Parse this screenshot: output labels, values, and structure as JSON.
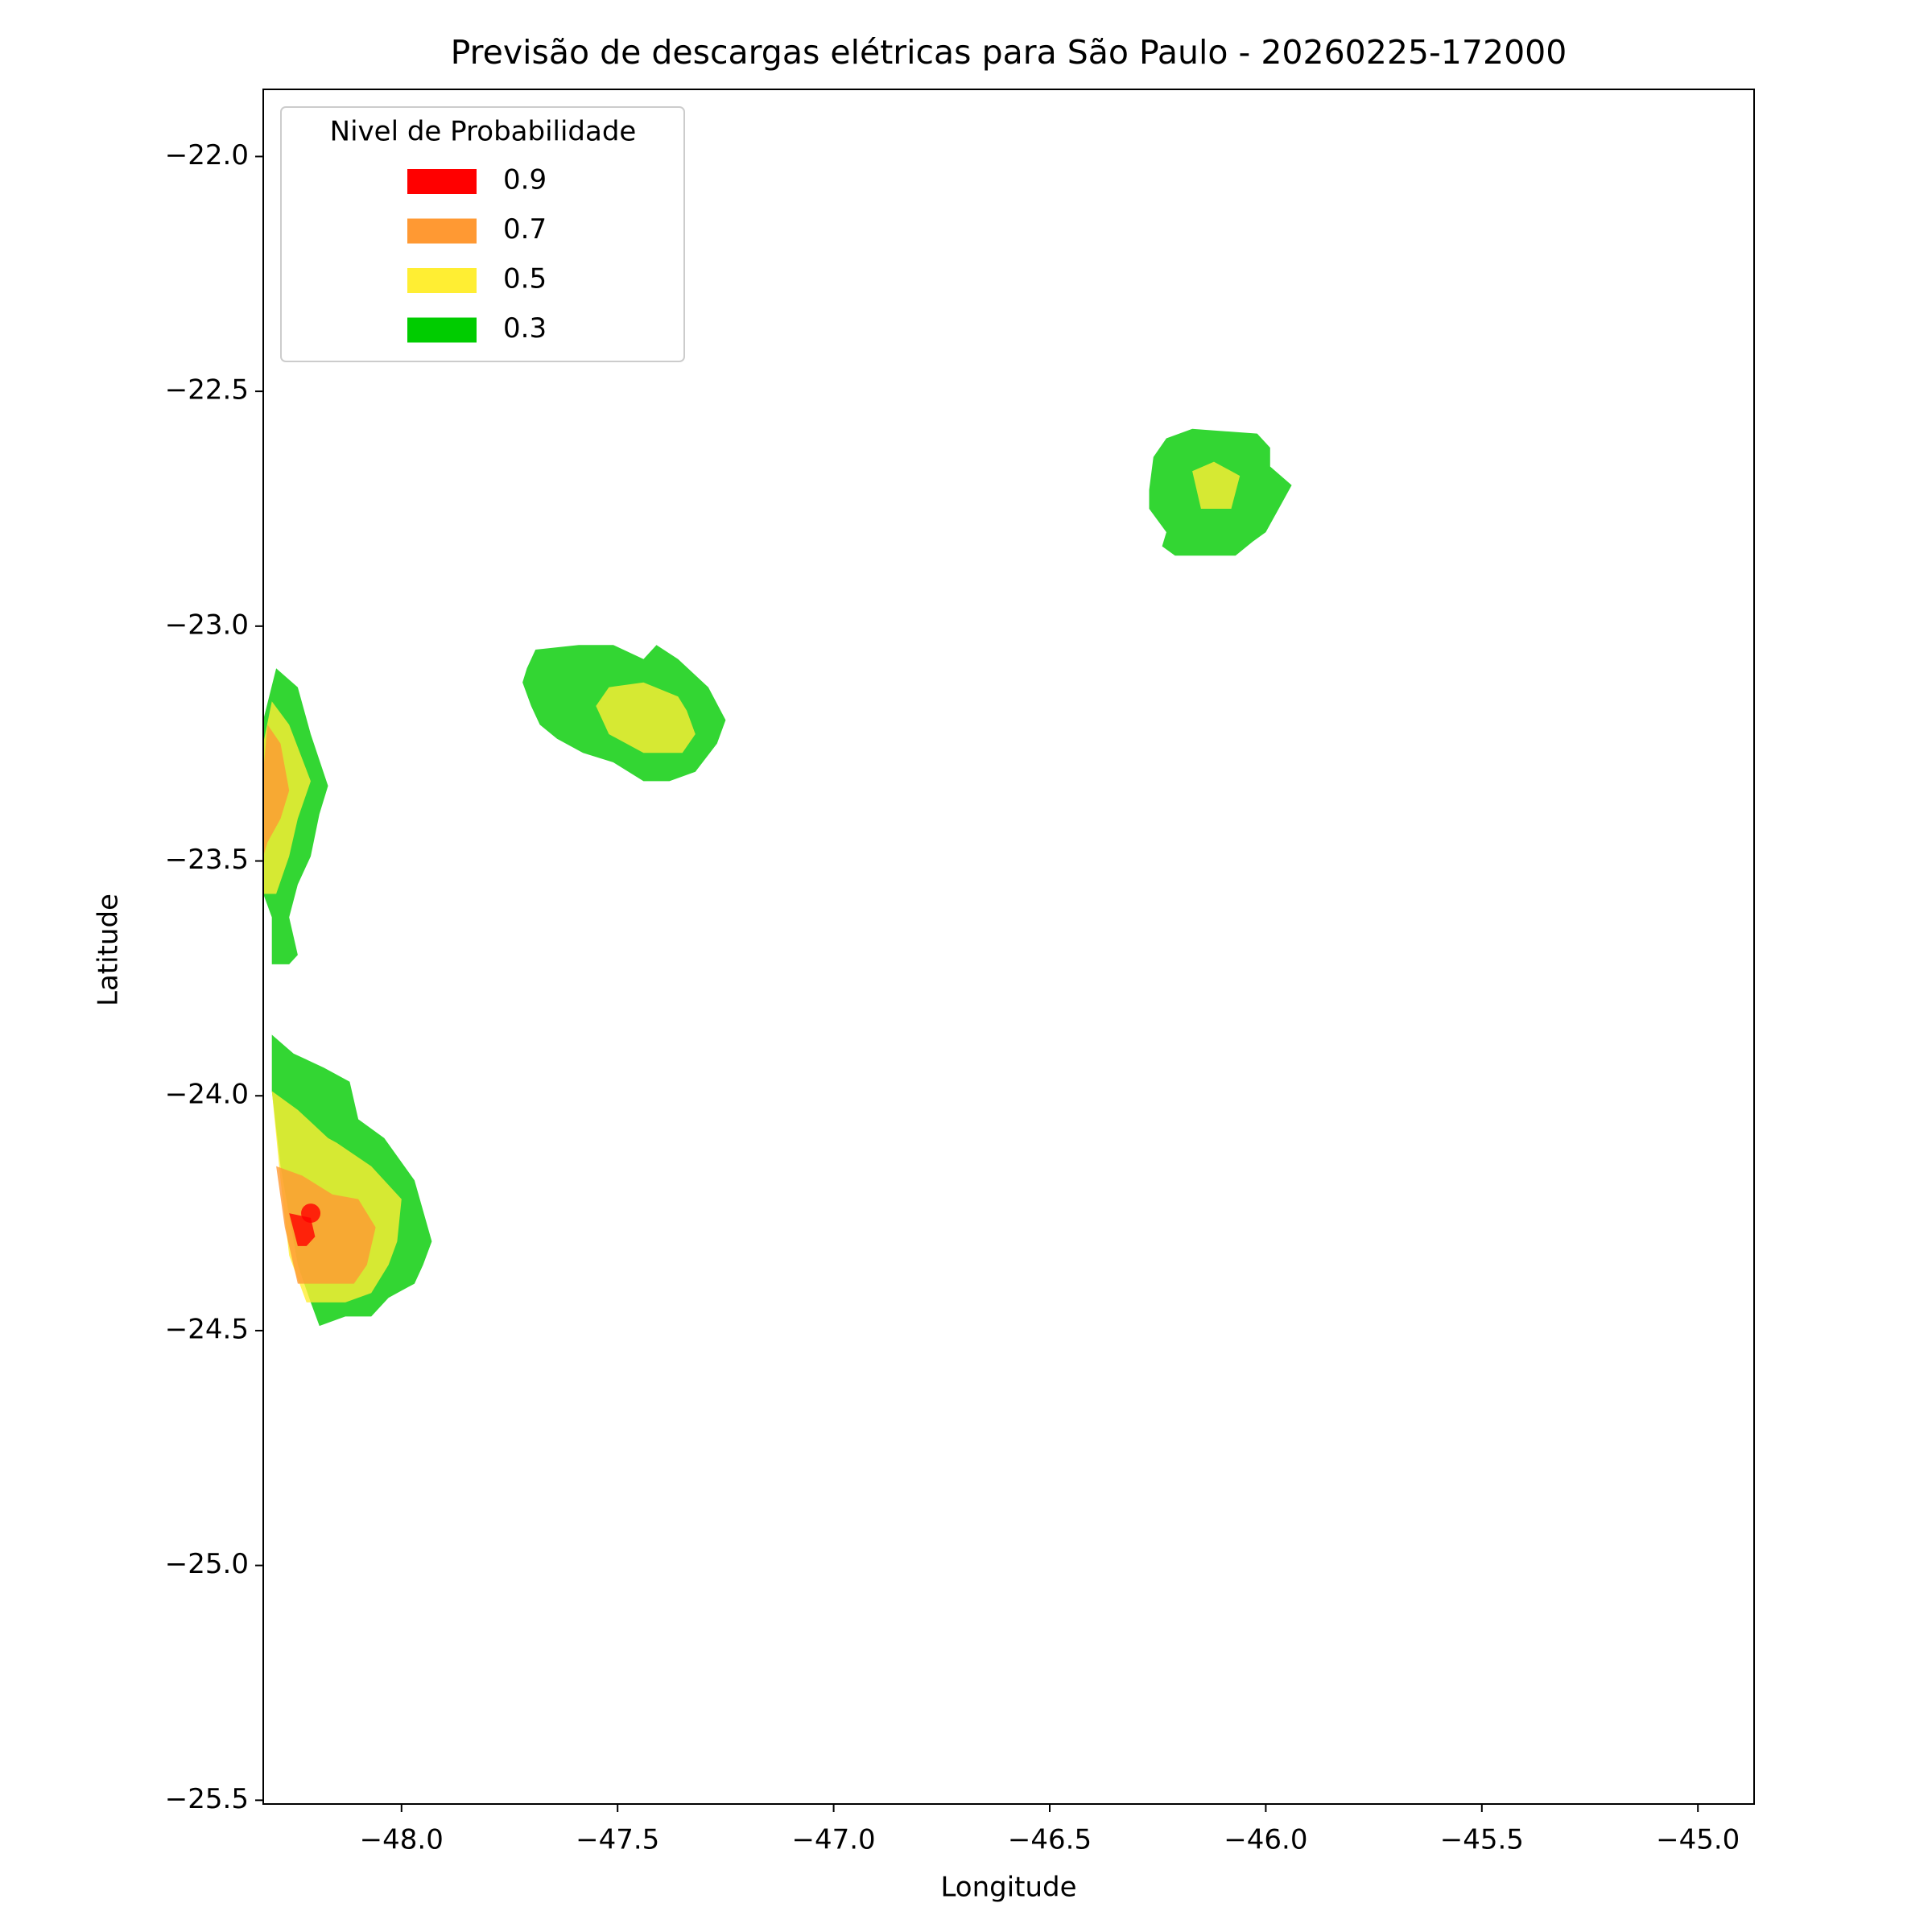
{
  "chart_data": {
    "type": "contour",
    "title": "Previsão de descargas elétricas para São Paulo - 20260225-172000",
    "xlabel": "Longitude",
    "ylabel": "Latitude",
    "legend_title": "Nivel de Probabilidade",
    "legend_position": "upper left",
    "alpha": 0.8,
    "xlim": [
      -48.32,
      -44.87
    ],
    "ylim": [
      -25.508,
      -21.857
    ],
    "xticks": [
      {
        "value": -48,
        "label": "−48.0"
      },
      {
        "value": -47.5,
        "label": "−47.5"
      },
      {
        "value": -47,
        "label": "−47.0"
      },
      {
        "value": -46.5,
        "label": "−46.5"
      },
      {
        "value": -46,
        "label": "−46.0"
      },
      {
        "value": -45.5,
        "label": "−45.5"
      },
      {
        "value": -45,
        "label": "−45.0"
      }
    ],
    "yticks": [
      {
        "value": -22,
        "label": "−22.0"
      },
      {
        "value": -22.5,
        "label": "−22.5"
      },
      {
        "value": -23,
        "label": "−23.0"
      },
      {
        "value": -23.5,
        "label": "−23.5"
      },
      {
        "value": -24,
        "label": "−24.0"
      },
      {
        "value": -24.5,
        "label": "−24.5"
      },
      {
        "value": -25,
        "label": "−25.0"
      },
      {
        "value": -25.5,
        "label": "−25.5"
      }
    ],
    "series": [
      {
        "name": "0.9",
        "color": "#ff0000",
        "polygons": [
          [
            [
              -48.26,
              -24.25
            ],
            [
              -48.21,
              -24.26
            ],
            [
              -48.2,
              -24.3
            ],
            [
              -48.22,
              -24.32
            ],
            [
              -48.24,
              -24.32
            ]
          ]
        ]
      },
      {
        "name": "0.7",
        "color": "#ff9933",
        "polygons": [
          [
            [
              -48.32,
              -23.31
            ],
            [
              -48.31,
              -23.21
            ],
            [
              -48.28,
              -23.25
            ],
            [
              -48.26,
              -23.35
            ],
            [
              -48.28,
              -23.41
            ],
            [
              -48.31,
              -23.46
            ],
            [
              -48.32,
              -23.49
            ]
          ],
          [
            [
              -48.29,
              -24.15
            ],
            [
              -48.23,
              -24.17
            ],
            [
              -48.16,
              -24.21
            ],
            [
              -48.1,
              -24.22
            ],
            [
              -48.06,
              -24.28
            ],
            [
              -48.08,
              -24.36
            ],
            [
              -48.11,
              -24.4
            ],
            [
              -48.24,
              -24.4
            ],
            [
              -48.27,
              -24.28
            ]
          ]
        ]
      },
      {
        "name": "0.5",
        "color": "#ffee33",
        "polygons": [
          [
            [
              -46.17,
              -22.67
            ],
            [
              -46.12,
              -22.65
            ],
            [
              -46.06,
              -22.68
            ],
            [
              -46.08,
              -22.75
            ],
            [
              -46.15,
              -22.75
            ]
          ],
          [
            [
              -47.52,
              -23.13
            ],
            [
              -47.44,
              -23.12
            ],
            [
              -47.36,
              -23.15
            ],
            [
              -47.34,
              -23.18
            ],
            [
              -47.32,
              -23.23
            ],
            [
              -47.35,
              -23.27
            ],
            [
              -47.44,
              -23.27
            ],
            [
              -47.52,
              -23.23
            ],
            [
              -47.55,
              -23.17
            ]
          ],
          [
            [
              -48.32,
              -23.25
            ],
            [
              -48.3,
              -23.16
            ],
            [
              -48.26,
              -23.21
            ],
            [
              -48.21,
              -23.33
            ],
            [
              -48.24,
              -23.41
            ],
            [
              -48.26,
              -23.49
            ],
            [
              -48.29,
              -23.57
            ],
            [
              -48.32,
              -23.57
            ]
          ],
          [
            [
              -48.3,
              -23.99
            ],
            [
              -48.24,
              -24.03
            ],
            [
              -48.17,
              -24.09
            ],
            [
              -48.15,
              -24.1
            ],
            [
              -48.07,
              -24.15
            ],
            [
              -48.0,
              -24.22
            ],
            [
              -48.01,
              -24.31
            ],
            [
              -48.03,
              -24.36
            ],
            [
              -48.07,
              -24.42
            ],
            [
              -48.13,
              -24.44
            ],
            [
              -48.22,
              -24.44
            ],
            [
              -48.26,
              -24.34
            ],
            [
              -48.28,
              -24.18
            ]
          ]
        ]
      },
      {
        "name": "0.3",
        "color": "#00cc00",
        "polygons": [
          [
            [
              -46.23,
              -22.6
            ],
            [
              -46.17,
              -22.58
            ],
            [
              -46.02,
              -22.59
            ],
            [
              -45.99,
              -22.62
            ],
            [
              -45.99,
              -22.66
            ],
            [
              -45.94,
              -22.7
            ],
            [
              -45.97,
              -22.75
            ],
            [
              -46.0,
              -22.8
            ],
            [
              -46.03,
              -22.82
            ],
            [
              -46.07,
              -22.85
            ],
            [
              -46.21,
              -22.85
            ],
            [
              -46.24,
              -22.83
            ],
            [
              -46.23,
              -22.8
            ],
            [
              -46.27,
              -22.75
            ],
            [
              -46.27,
              -22.71
            ],
            [
              -46.26,
              -22.64
            ]
          ],
          [
            [
              -47.69,
              -23.05
            ],
            [
              -47.59,
              -23.04
            ],
            [
              -47.51,
              -23.04
            ],
            [
              -47.44,
              -23.07
            ],
            [
              -47.41,
              -23.04
            ],
            [
              -47.36,
              -23.07
            ],
            [
              -47.29,
              -23.13
            ],
            [
              -47.25,
              -23.2
            ],
            [
              -47.27,
              -23.25
            ],
            [
              -47.32,
              -23.31
            ],
            [
              -47.38,
              -23.33
            ],
            [
              -47.44,
              -23.33
            ],
            [
              -47.51,
              -23.29
            ],
            [
              -47.58,
              -23.27
            ],
            [
              -47.64,
              -23.24
            ],
            [
              -47.68,
              -23.21
            ],
            [
              -47.7,
              -23.17
            ],
            [
              -47.72,
              -23.12
            ],
            [
              -47.71,
              -23.09
            ]
          ],
          [
            [
              -48.32,
              -23.2
            ],
            [
              -48.29,
              -23.09
            ],
            [
              -48.24,
              -23.13
            ],
            [
              -48.21,
              -23.23
            ],
            [
              -48.17,
              -23.34
            ],
            [
              -48.19,
              -23.4
            ],
            [
              -48.21,
              -23.49
            ],
            [
              -48.24,
              -23.55
            ],
            [
              -48.26,
              -23.62
            ],
            [
              -48.24,
              -23.7
            ],
            [
              -48.26,
              -23.72
            ],
            [
              -48.3,
              -23.72
            ],
            [
              -48.3,
              -23.62
            ],
            [
              -48.32,
              -23.57
            ]
          ],
          [
            [
              -48.3,
              -23.87
            ],
            [
              -48.25,
              -23.91
            ],
            [
              -48.18,
              -23.94
            ],
            [
              -48.12,
              -23.97
            ],
            [
              -48.1,
              -24.05
            ],
            [
              -48.04,
              -24.09
            ],
            [
              -47.97,
              -24.18
            ],
            [
              -47.93,
              -24.31
            ],
            [
              -47.95,
              -24.36
            ],
            [
              -47.97,
              -24.4
            ],
            [
              -48.03,
              -24.43
            ],
            [
              -48.07,
              -24.47
            ],
            [
              -48.13,
              -24.47
            ],
            [
              -48.19,
              -24.49
            ],
            [
              -48.21,
              -24.44
            ],
            [
              -48.24,
              -24.36
            ],
            [
              -48.28,
              -24.15
            ],
            [
              -48.3,
              -23.99
            ]
          ]
        ]
      }
    ],
    "markers": {
      "x": [
        -48.21
      ],
      "y": [
        -24.25
      ],
      "color": "#ff0000"
    }
  }
}
